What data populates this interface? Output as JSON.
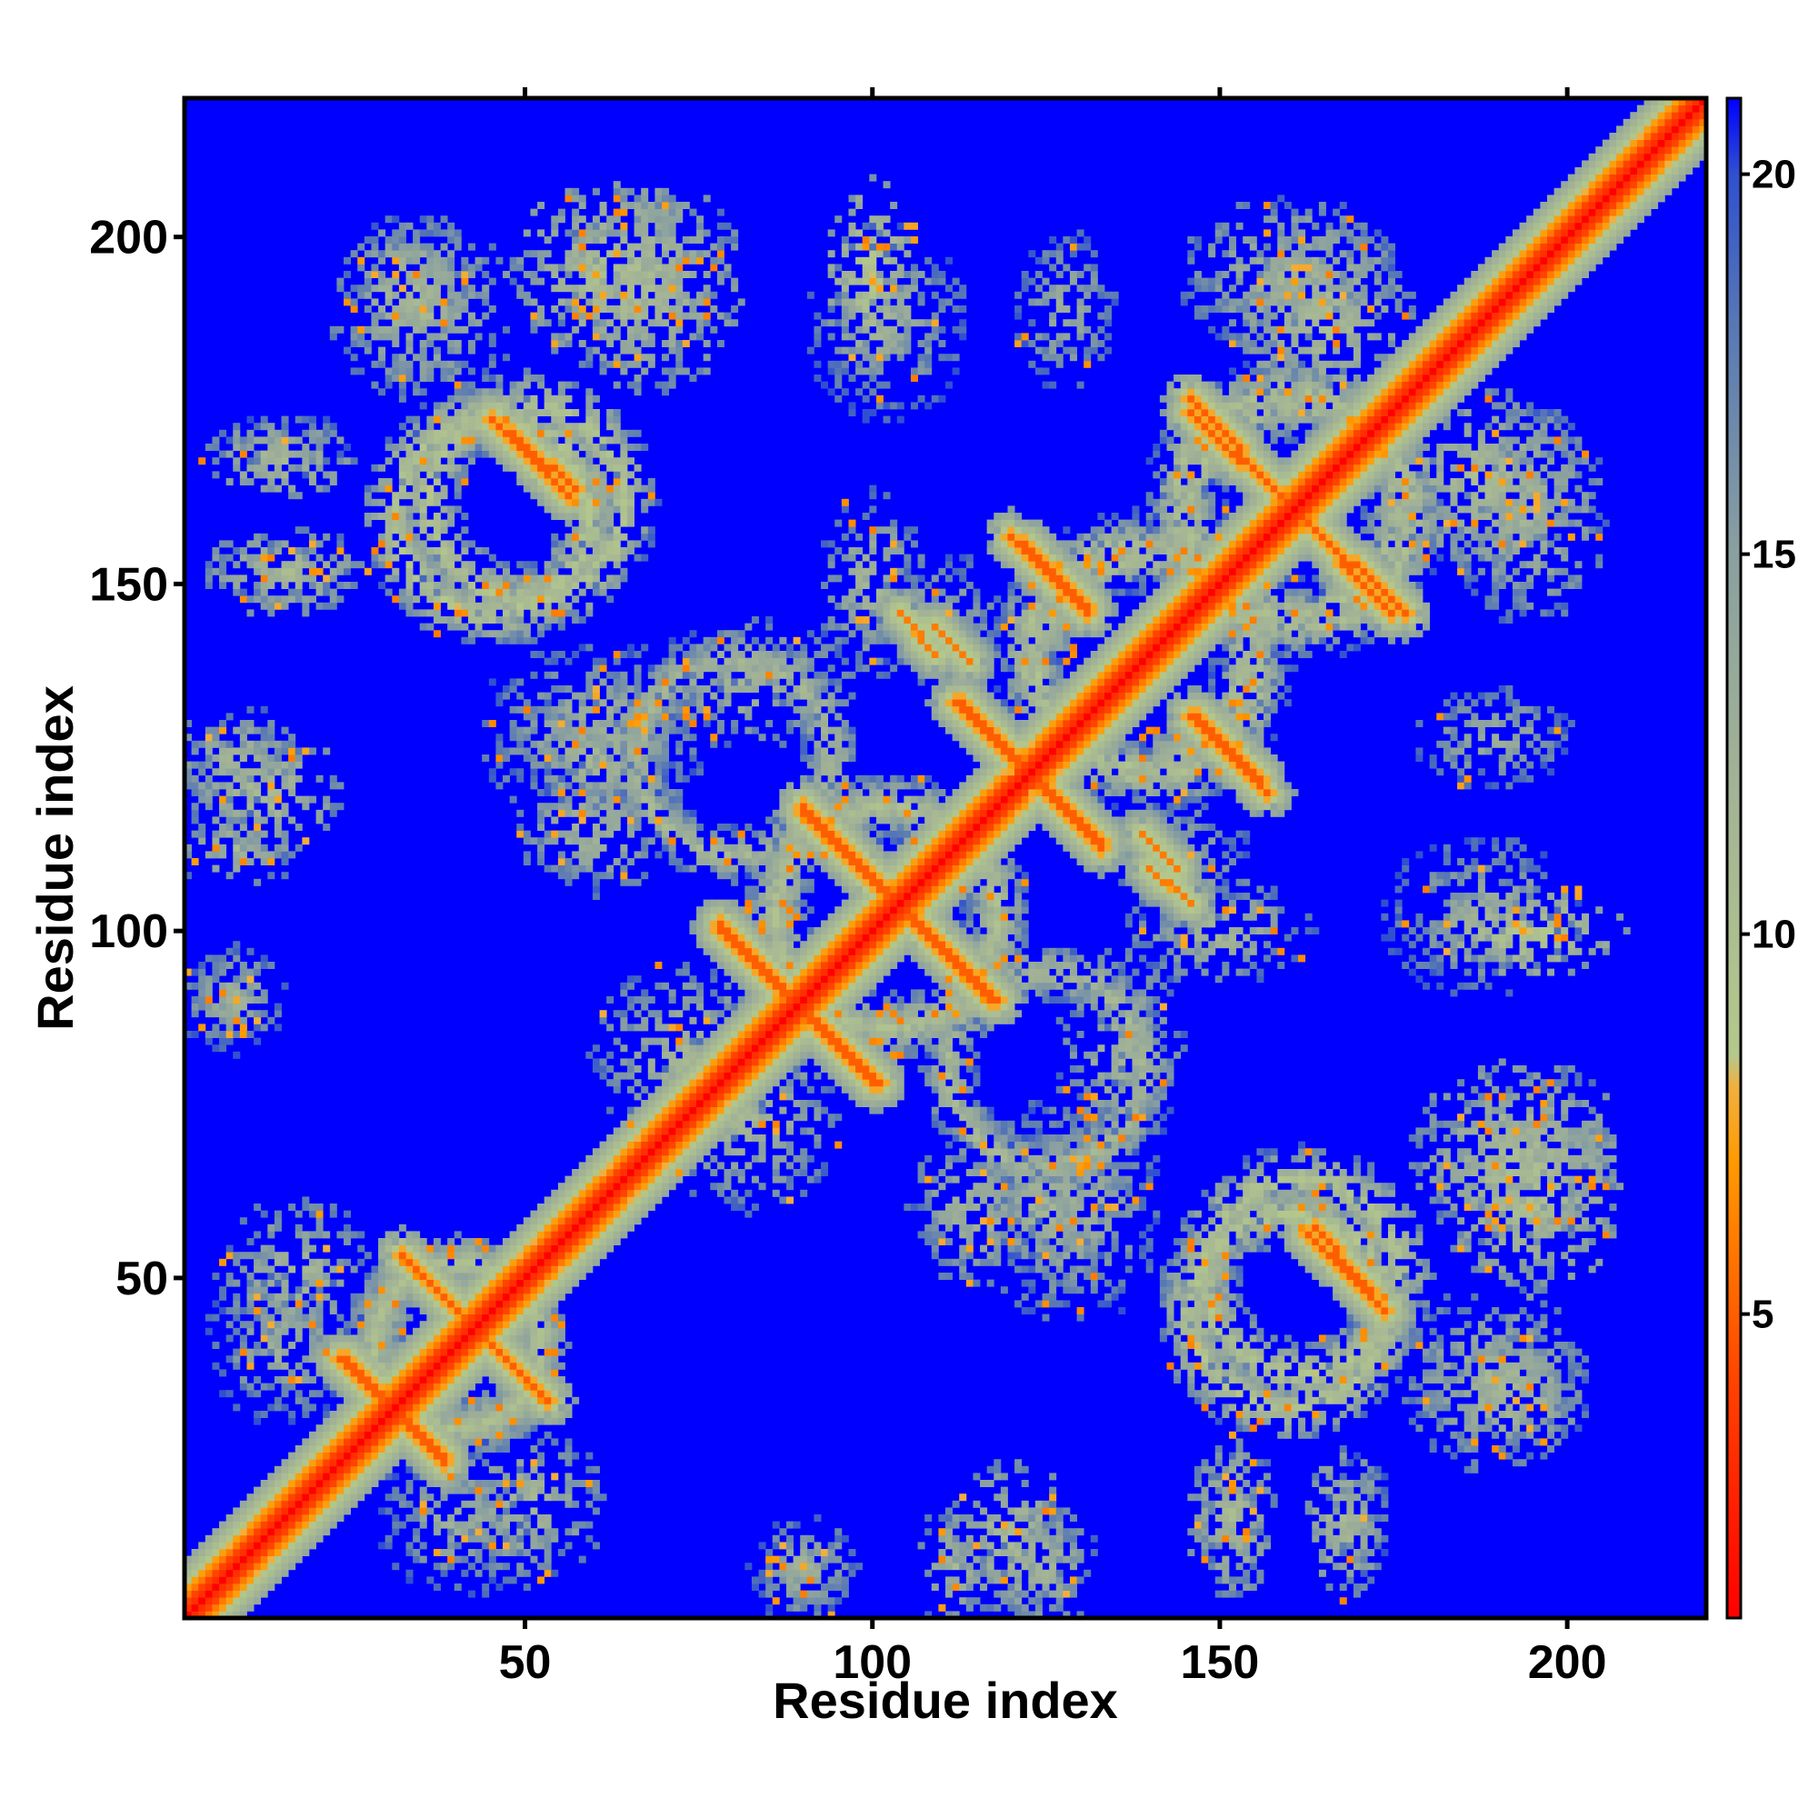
{
  "chart_data": {
    "type": "heatmap",
    "title": "",
    "xlabel": "Residue index",
    "ylabel": "Residue index",
    "n_residues": 220,
    "xlim": [
      1,
      220
    ],
    "ylim": [
      1,
      220
    ],
    "x_ticks": [
      50,
      100,
      150,
      200
    ],
    "y_ticks": [
      50,
      100,
      150,
      200
    ],
    "colorbar": {
      "ticks": [
        5,
        10,
        15,
        20
      ],
      "range": [
        1,
        21
      ],
      "stops": [
        {
          "value": 1,
          "color": "#ff0000"
        },
        {
          "value": 4,
          "color": "#ff4000"
        },
        {
          "value": 7,
          "color": "#ff9a00"
        },
        {
          "value": 8,
          "color": "#f0b040"
        },
        {
          "value": 8.4,
          "color": "#b4c88c"
        },
        {
          "value": 12,
          "color": "#a2b296"
        },
        {
          "value": 15,
          "color": "#8aa0a0"
        },
        {
          "value": 18,
          "color": "#5878b4"
        },
        {
          "value": 20,
          "color": "#3050d0"
        },
        {
          "value": 21,
          "color": "#0000ff"
        }
      ]
    },
    "background_value": 21,
    "contact_bands": [
      {
        "name": "main-diagonal",
        "type": "diagonal",
        "from": [
          1,
          1
        ],
        "to": [
          220,
          220
        ],
        "min_value": 1
      },
      {
        "name": "antiparallel-hairpin-a",
        "type": "antidiagonal",
        "from": [
          32,
          53
        ],
        "to": [
          52,
          33
        ],
        "min_value": 5
      },
      {
        "name": "antiparallel-hairpin-b",
        "type": "antidiagonal",
        "from": [
          23,
          38
        ],
        "to": [
          38,
          24
        ],
        "min_value": 5
      },
      {
        "name": "antiparallel-hairpin-c",
        "type": "antidiagonal",
        "from": [
          78,
          101
        ],
        "to": [
          100,
          78
        ],
        "min_value": 5
      },
      {
        "name": "antiparallel-hairpin-d",
        "type": "antidiagonal",
        "from": [
          90,
          118
        ],
        "to": [
          117,
          90
        ],
        "min_value": 5
      },
      {
        "name": "antiparallel-hairpin-e",
        "type": "antidiagonal",
        "from": [
          113,
          133
        ],
        "to": [
          133,
          112
        ],
        "min_value": 5
      },
      {
        "name": "antiparallel-hairpin-f",
        "type": "antidiagonal",
        "from": [
          122,
          156
        ],
        "to": [
          131,
          147
        ],
        "min_value": 5
      },
      {
        "name": "antiparallel-hairpin-g",
        "type": "antidiagonal",
        "from": [
          146,
          177
        ],
        "to": [
          175,
          146
        ],
        "min_value": 5
      },
      {
        "name": "antiparallel-hairpin-h",
        "type": "antidiagonal",
        "from": [
          146,
          131
        ],
        "to": [
          157,
          120
        ],
        "min_value": 5
      },
      {
        "name": "offdiag-contact-a",
        "type": "antidiagonal",
        "from": [
          45,
          174
        ],
        "to": [
          56,
          163
        ],
        "min_value": 5
      },
      {
        "name": "offdiag-contact-b",
        "type": "antidiagonal",
        "from": [
          164,
          57
        ],
        "to": [
          174,
          45
        ],
        "min_value": 5
      },
      {
        "name": "offdiag-contact-c",
        "type": "antidiagonal",
        "from": [
          140,
          109
        ],
        "to": [
          146,
          104
        ],
        "min_value": 6
      },
      {
        "name": "offdiag-contact-d",
        "type": "antidiagonal",
        "from": [
          109,
          144
        ],
        "to": [
          114,
          139
        ],
        "min_value": 6
      }
    ],
    "contact_regions": [
      {
        "name": "region-upper-left-1",
        "center": [
          35,
          190
        ],
        "rx": 14,
        "ry": 14,
        "min_value": 10
      },
      {
        "name": "region-upper-left-2",
        "center": [
          68,
          193
        ],
        "rx": 14,
        "ry": 16,
        "min_value": 9
      },
      {
        "name": "region-left-1",
        "center": [
          15,
          170
        ],
        "rx": 10,
        "ry": 5,
        "min_value": 11
      },
      {
        "name": "region-left-2",
        "center": [
          15,
          152
        ],
        "rx": 10,
        "ry": 5,
        "min_value": 10
      },
      {
        "name": "region-left-3",
        "center": [
          8,
          125
        ],
        "rx": 10,
        "ry": 8,
        "min_value": 10
      },
      {
        "name": "region-left-4",
        "center": [
          8,
          112
        ],
        "rx": 10,
        "ry": 6,
        "min_value": 10
      },
      {
        "name": "region-left-5",
        "center": [
          7,
          90
        ],
        "rx": 9,
        "ry": 7,
        "min_value": 11
      },
      {
        "name": "region-mid-top",
        "center": [
          102,
          188
        ],
        "rx": 12,
        "ry": 15,
        "min_value": 11
      },
      {
        "name": "region-mid-1",
        "center": [
          83,
          136
        ],
        "rx": 15,
        "ry": 10,
        "min_value": 10
      },
      {
        "name": "region-mid-2",
        "center": [
          110,
          145
        ],
        "rx": 10,
        "ry": 10,
        "min_value": 11
      },
      {
        "name": "region-lower-mid-1",
        "center": [
          73,
          82
        ],
        "rx": 14,
        "ry": 14,
        "min_value": 10
      },
      {
        "name": "region-lower-mid-2",
        "center": [
          125,
          60
        ],
        "rx": 10,
        "ry": 16,
        "min_value": 10
      },
      {
        "name": "region-right-top",
        "center": [
          165,
          188
        ],
        "rx": 14,
        "ry": 16,
        "min_value": 9
      },
      {
        "name": "region-right-1",
        "center": [
          195,
          160
        ],
        "rx": 12,
        "ry": 16,
        "min_value": 10
      },
      {
        "name": "region-right-2",
        "center": [
          195,
          100
        ],
        "rx": 14,
        "ry": 7,
        "min_value": 7
      },
      {
        "name": "region-right-3",
        "center": [
          190,
          128
        ],
        "rx": 12,
        "ry": 8,
        "min_value": 11
      },
      {
        "name": "region-lower-right-1",
        "center": [
          195,
          63
        ],
        "rx": 14,
        "ry": 16,
        "min_value": 8
      },
      {
        "name": "region-lower-right-2",
        "center": [
          192,
          33
        ],
        "rx": 12,
        "ry": 9,
        "min_value": 9
      },
      {
        "name": "region-lower-left",
        "center": [
          17,
          50
        ],
        "rx": 12,
        "ry": 12,
        "min_value": 10
      },
      {
        "name": "region-bottom-1",
        "center": [
          90,
          8
        ],
        "rx": 8,
        "ry": 7,
        "min_value": 10
      },
      {
        "name": "region-bottom-2",
        "center": [
          120,
          12
        ],
        "rx": 10,
        "ry": 12,
        "min_value": 9
      },
      {
        "name": "region-bottom-3",
        "center": [
          152,
          15
        ],
        "rx": 7,
        "ry": 12,
        "min_value": 9
      },
      {
        "name": "region-bottom-4",
        "center": [
          168,
          14
        ],
        "rx": 6,
        "ry": 12,
        "min_value": 9
      },
      {
        "name": "region-bottom-5",
        "center": [
          40,
          15
        ],
        "rx": 12,
        "ry": 12,
        "min_value": 11
      },
      {
        "name": "region-bottom-6",
        "center": [
          130,
          60
        ],
        "rx": 12,
        "ry": 18,
        "min_value": 11
      },
      {
        "name": "region-mid-3",
        "center": [
          150,
          100
        ],
        "rx": 14,
        "ry": 8,
        "min_value": 10
      },
      {
        "name": "region-mid-4",
        "center": [
          60,
          115
        ],
        "rx": 12,
        "ry": 10,
        "min_value": 10
      }
    ],
    "contact_rings": [
      {
        "name": "ring-1",
        "center": [
          45,
          160
        ],
        "r": 14,
        "width": 5,
        "min_value": 8
      },
      {
        "name": "ring-2",
        "center": [
          162,
          50
        ],
        "r": 14,
        "width": 5,
        "min_value": 8
      },
      {
        "name": "ring-3",
        "center": [
          102,
          102
        ],
        "r": 16,
        "width": 5,
        "min_value": 9
      },
      {
        "name": "ring-4",
        "center": [
          140,
          138
        ],
        "r": 16,
        "width": 5,
        "min_value": 9
      },
      {
        "name": "ring-5",
        "center": [
          40,
          40
        ],
        "r": 12,
        "width": 4,
        "min_value": 9
      },
      {
        "name": "ring-6",
        "center": [
          162,
          160
        ],
        "r": 16,
        "width": 5,
        "min_value": 9
      },
      {
        "name": "ring-7",
        "center": [
          80,
          125
        ],
        "r": 14,
        "width": 4,
        "min_value": 10
      }
    ]
  }
}
